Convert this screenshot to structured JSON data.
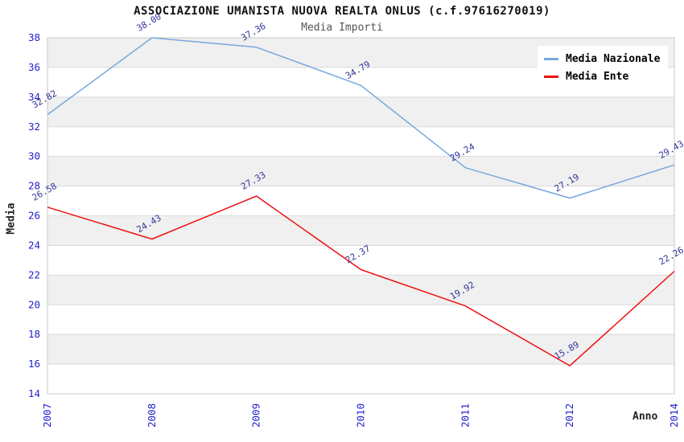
{
  "chart_data": {
    "type": "line",
    "title": "ASSOCIAZIONE UMANISTA NUOVA REALTA ONLUS (c.f.97616270019)",
    "subtitle": "Media Importi",
    "xlabel": "Anno",
    "ylabel": "Media",
    "categories": [
      "2007",
      "2008",
      "2009",
      "2010",
      "2011",
      "2012",
      "2014"
    ],
    "series": [
      {
        "name": "Media Nazionale",
        "color": "#76a8e0",
        "values": [
          32.82,
          38.0,
          37.36,
          34.79,
          29.24,
          27.19,
          29.43
        ]
      },
      {
        "name": "Media Ente",
        "color": "#ee1111",
        "values": [
          26.58,
          24.43,
          27.33,
          22.37,
          19.92,
          15.89,
          22.26
        ]
      }
    ],
    "ylim": [
      14,
      38
    ],
    "ytick_step": 2,
    "grid": true,
    "banded_background": true,
    "legend_position": "top-right",
    "value_label_decimals": 2
  },
  "colors": {
    "axis_tick_text": "#2222cc",
    "value_label_text": "#34349a",
    "band_fill": "#f0f0f0",
    "grid_line": "#dadada",
    "frame_line": "#c8c8c8",
    "title_text": "#111111",
    "subtitle_text": "#555555",
    "axis_title_text": "#222222",
    "legend_text": "#000000",
    "legend_background": "#ffffff"
  }
}
